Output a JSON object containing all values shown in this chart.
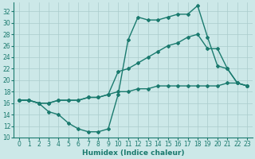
{
  "line1_x": [
    0,
    1,
    2,
    3,
    4,
    5,
    6,
    7,
    8,
    9,
    10,
    11,
    12,
    13,
    14,
    15,
    16,
    17,
    18,
    19,
    20,
    21,
    22,
    23
  ],
  "line1_y": [
    16.5,
    16.5,
    16.0,
    14.5,
    14.0,
    12.5,
    11.5,
    11.0,
    11.0,
    11.5,
    17.5,
    27.0,
    31.0,
    30.5,
    30.5,
    31.0,
    31.5,
    31.5,
    33.0,
    27.5,
    22.5,
    22.0,
    19.5,
    19.0
  ],
  "line2_x": [
    0,
    1,
    2,
    3,
    4,
    5,
    6,
    7,
    8,
    9,
    10,
    11,
    12,
    13,
    14,
    15,
    16,
    17,
    18,
    19,
    20,
    21,
    22,
    23
  ],
  "line2_y": [
    16.5,
    16.5,
    16.0,
    16.0,
    16.5,
    16.5,
    16.5,
    17.0,
    17.0,
    17.5,
    21.5,
    22.0,
    23.0,
    24.0,
    25.0,
    26.0,
    26.5,
    27.5,
    28.0,
    25.5,
    25.5,
    22.0,
    19.5,
    19.0
  ],
  "line3_x": [
    0,
    1,
    2,
    3,
    4,
    5,
    6,
    7,
    8,
    9,
    10,
    11,
    12,
    13,
    14,
    15,
    16,
    17,
    18,
    19,
    20,
    21,
    22,
    23
  ],
  "line3_y": [
    16.5,
    16.5,
    16.0,
    16.0,
    16.5,
    16.5,
    16.5,
    17.0,
    17.0,
    17.5,
    18.0,
    18.0,
    18.5,
    18.5,
    19.0,
    19.0,
    19.0,
    19.0,
    19.0,
    19.0,
    19.0,
    19.5,
    19.5,
    19.0
  ],
  "line_color": "#1a7a6e",
  "bg_color": "#cce8e8",
  "grid_color": "#aacccc",
  "xlabel": "Humidex (Indice chaleur)",
  "xlim": [
    -0.5,
    23.5
  ],
  "ylim": [
    10,
    33.5
  ],
  "yticks": [
    10,
    12,
    14,
    16,
    18,
    20,
    22,
    24,
    26,
    28,
    30,
    32
  ],
  "xticks": [
    0,
    1,
    2,
    3,
    4,
    5,
    6,
    7,
    8,
    9,
    10,
    11,
    12,
    13,
    14,
    15,
    16,
    17,
    18,
    19,
    20,
    21,
    22,
    23
  ],
  "marker": "D",
  "markersize": 2,
  "linewidth": 1.0,
  "tick_fontsize": 5.5,
  "xlabel_fontsize": 6.5
}
